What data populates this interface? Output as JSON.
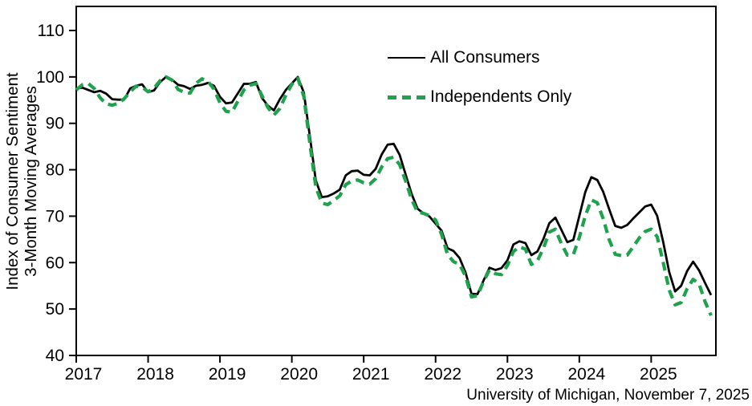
{
  "chart_data": {
    "type": "line",
    "title": "",
    "ylabel_lines": [
      "Index of Consumer Sentiment",
      "3-Month Moving Averages"
    ],
    "xlabel": "",
    "x_start": "2017-01",
    "frequency": "monthly",
    "x_tick_years": [
      2017,
      2018,
      2019,
      2020,
      2021,
      2022,
      2023,
      2024,
      2025
    ],
    "y_ticks": [
      40,
      50,
      60,
      70,
      80,
      90,
      100,
      110
    ],
    "ylim": [
      40,
      110
    ],
    "grid": false,
    "legend_position": "inside-top-center",
    "source_note": "University of Michigan, November 7, 2025",
    "series": [
      {
        "name": "All Consumers",
        "color": "#000000",
        "style": "solid",
        "values": [
          97.5,
          97.7,
          97.2,
          96.7,
          97.0,
          96.4,
          95.2,
          95.1,
          95.1,
          97.5,
          98.1,
          98.4,
          96.7,
          97.1,
          98.9,
          100.0,
          99.4,
          98.3,
          98.0,
          97.4,
          98.1,
          98.3,
          98.7,
          98.1,
          95.7,
          94.3,
          94.5,
          96.5,
          98.5,
          98.5,
          98.9,
          95.5,
          93.8,
          92.8,
          95.2,
          97.2,
          98.6,
          100.0,
          96.6,
          87.3,
          77.7,
          74.1,
          74.3,
          74.9,
          75.7,
          78.8,
          79.7,
          79.8,
          78.9,
          78.8,
          80.2,
          83.3,
          85.4,
          85.6,
          83.2,
          79.0,
          74.8,
          71.6,
          70.6,
          69.9,
          68.4,
          66.9,
          63.1,
          62.5,
          61.0,
          57.9,
          53.3,
          53.2,
          56.1,
          58.9,
          58.4,
          58.8,
          60.5,
          63.9,
          64.6,
          64.2,
          61.6,
          62.4,
          65.1,
          68.5,
          69.7,
          67.1,
          64.4,
          64.9,
          70.0,
          75.2,
          78.4,
          77.8,
          75.2,
          71.5,
          67.9,
          67.5,
          68.1,
          69.5,
          70.8,
          72.1,
          72.5,
          70.1,
          64.5,
          58.0,
          53.8,
          55.0,
          58.2,
          60.2,
          58.3,
          55.6,
          53.0
        ]
      },
      {
        "name": "Independents Only",
        "color": "#1fa24d",
        "style": "dashed",
        "values": [
          97.2,
          98.3,
          98.6,
          97.5,
          95.5,
          94.2,
          93.9,
          94.3,
          95.3,
          96.8,
          98.0,
          97.8,
          96.8,
          97.6,
          99.2,
          100.0,
          99.3,
          97.3,
          96.7,
          96.5,
          98.6,
          99.6,
          99.0,
          97.4,
          94.4,
          92.6,
          92.4,
          94.8,
          97.2,
          98.2,
          98.6,
          96.0,
          93.4,
          91.8,
          93.2,
          96.1,
          98.4,
          99.7,
          95.8,
          85.8,
          76.3,
          72.8,
          72.5,
          73.4,
          74.4,
          76.8,
          77.6,
          77.8,
          77.2,
          76.9,
          78.1,
          80.6,
          82.4,
          82.7,
          81.1,
          77.6,
          73.6,
          70.9,
          70.6,
          70.1,
          69.2,
          66.1,
          61.7,
          60.2,
          59.6,
          57.1,
          52.6,
          52.9,
          55.9,
          58.4,
          57.6,
          57.4,
          59.4,
          62.4,
          63.4,
          62.9,
          59.6,
          60.4,
          63.1,
          66.6,
          67.2,
          64.1,
          61.6,
          61.7,
          65.4,
          70.1,
          73.5,
          72.9,
          69.4,
          64.9,
          61.8,
          61.5,
          61.6,
          63.4,
          65.3,
          66.7,
          67.2,
          65.6,
          60.1,
          54.1,
          50.9,
          51.4,
          54.4,
          56.4,
          55.4,
          51.6,
          48.6
        ]
      }
    ]
  },
  "colors": {
    "background": "#ffffff",
    "axis": "#000000",
    "all_consumers_line": "#000000",
    "independents_line": "#1fa24d"
  }
}
